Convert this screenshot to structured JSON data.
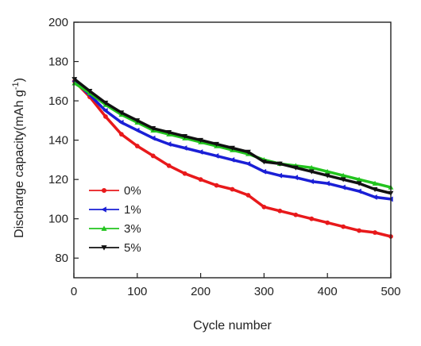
{
  "chart_data": {
    "type": "scatter",
    "title": "",
    "xlabel": "Cycle number",
    "ylabel": "Discharge capacity(mAh g",
    "ylabel_sup": "-1",
    "ylabel_end": ")",
    "xlim": [
      0,
      500
    ],
    "ylim": [
      70,
      200
    ],
    "xticks": [
      0,
      100,
      200,
      300,
      400,
      500
    ],
    "yticks": [
      80,
      100,
      120,
      140,
      160,
      180,
      200
    ],
    "grid": false,
    "legend_position": "lower-left",
    "x": [
      1,
      25,
      50,
      75,
      100,
      125,
      150,
      175,
      200,
      225,
      250,
      275,
      300,
      325,
      350,
      375,
      400,
      425,
      450,
      475,
      500
    ],
    "series": [
      {
        "name": "0%",
        "color": "#e8191b",
        "marker": "circle",
        "values": [
          170,
          162,
          152,
          143,
          137,
          132,
          127,
          123,
          120,
          117,
          115,
          112,
          106,
          104,
          102,
          100,
          98,
          96,
          94,
          93,
          91
        ]
      },
      {
        "name": "1%",
        "color": "#1a1fd6",
        "marker": "triangle-left",
        "values": [
          170,
          163,
          155,
          149,
          145,
          141,
          138,
          136,
          134,
          132,
          130,
          128,
          124,
          122,
          121,
          119,
          118,
          116,
          114,
          111,
          110
        ]
      },
      {
        "name": "3%",
        "color": "#22c41e",
        "marker": "triangle-up",
        "values": [
          169,
          164,
          158,
          153,
          149,
          145,
          143,
          141,
          139,
          137,
          135,
          133,
          130,
          128,
          127,
          126,
          124,
          122,
          120,
          118,
          116
        ]
      },
      {
        "name": "5%",
        "color": "#111111",
        "marker": "triangle-down",
        "values": [
          171,
          165,
          159,
          154,
          150,
          146,
          144,
          142,
          140,
          138,
          136,
          134,
          129,
          128,
          126,
          124,
          122,
          120,
          118,
          115,
          113
        ]
      }
    ]
  }
}
